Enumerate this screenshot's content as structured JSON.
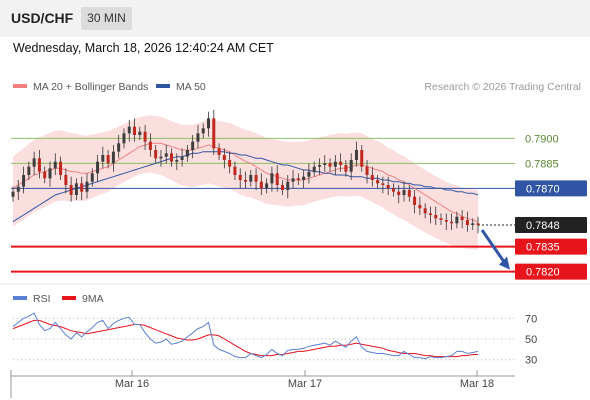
{
  "header": {
    "pair": "USD/CHF",
    "timeframe": "30 MIN",
    "timestamp": "Wednesday, March 18, 2026 12:40:24 AM CET"
  },
  "colors": {
    "bollinger": "#f07f7f",
    "ma50": "#2f55a4",
    "green_level": "#8cc063",
    "blue_level": "#2f55a4",
    "red_level": "#e8141c",
    "arrow": "#2f55a4",
    "rsi": "#5b7fd4",
    "rsi_ma": "#e8141c"
  },
  "chart_data": [
    {
      "type": "candlestick",
      "legend": [
        {
          "name": "MA 20 + Bollinger Bands",
          "color": "#f07f7f"
        },
        {
          "name": "MA 50",
          "color": "#2f55a4"
        }
      ],
      "credit": "Research © 2026 Trading Central",
      "ylim": [
        0.7812,
        0.792
      ],
      "levels": [
        {
          "value": 0.79,
          "label": "0.7900",
          "kind": "resistance",
          "color": "#8cc063",
          "style": "line"
        },
        {
          "value": 0.7885,
          "label": "0.7885",
          "kind": "resistance",
          "color": "#8cc063",
          "style": "line"
        },
        {
          "value": 0.787,
          "label": "0.7870",
          "kind": "pivot",
          "color": "#2f55a4",
          "style": "line"
        },
        {
          "value": 0.7848,
          "label": "0.7848",
          "kind": "last",
          "color": "#222222",
          "style": "dotted"
        },
        {
          "value": 0.7835,
          "label": "0.7835",
          "kind": "support",
          "color": "#e8141c",
          "style": "line"
        },
        {
          "value": 0.782,
          "label": "0.7820",
          "kind": "support",
          "color": "#e8141c",
          "style": "line"
        }
      ],
      "projection": {
        "from": 0.7845,
        "to": 0.782,
        "direction": "down"
      },
      "x_ticks": [
        "Mar 16",
        "Mar 17",
        "Mar 18"
      ],
      "close": [
        0.7868,
        0.7871,
        0.7878,
        0.7883,
        0.7888,
        0.788,
        0.7876,
        0.7882,
        0.7886,
        0.7878,
        0.7872,
        0.7866,
        0.7873,
        0.7868,
        0.7874,
        0.7879,
        0.7886,
        0.789,
        0.7885,
        0.7892,
        0.7897,
        0.7903,
        0.7907,
        0.7902,
        0.7904,
        0.7898,
        0.7893,
        0.7888,
        0.7889,
        0.7891,
        0.7886,
        0.7887,
        0.7889,
        0.7893,
        0.7898,
        0.7903,
        0.7906,
        0.7912,
        0.7894,
        0.789,
        0.7887,
        0.7883,
        0.7878,
        0.7875,
        0.7874,
        0.7878,
        0.7874,
        0.787,
        0.7873,
        0.7879,
        0.7872,
        0.7869,
        0.7874,
        0.7876,
        0.7875,
        0.7877,
        0.788,
        0.7883,
        0.7884,
        0.7885,
        0.7883,
        0.7886,
        0.7884,
        0.788,
        0.7887,
        0.7893,
        0.7883,
        0.7878,
        0.7875,
        0.7873,
        0.7872,
        0.787,
        0.7868,
        0.7866,
        0.7869,
        0.7865,
        0.786,
        0.7858,
        0.7855,
        0.7854,
        0.7852,
        0.7851,
        0.785,
        0.7849,
        0.7853,
        0.7851,
        0.7848,
        0.7849,
        0.7848
      ],
      "ma20_approx": [
        0.787,
        0.7872,
        0.7874,
        0.7876,
        0.7878,
        0.7879,
        0.788,
        0.7881,
        0.7882,
        0.7882,
        0.7881,
        0.788,
        0.788,
        0.7879,
        0.7879,
        0.788,
        0.7881,
        0.7882,
        0.7883,
        0.7885,
        0.7887,
        0.7889,
        0.7891,
        0.7893,
        0.7895,
        0.7896,
        0.7897,
        0.7897,
        0.7897,
        0.7896,
        0.7895,
        0.7894,
        0.7893,
        0.7893,
        0.7893,
        0.7894,
        0.7895,
        0.7896,
        0.7895,
        0.7894,
        0.7893,
        0.7892,
        0.789,
        0.7888,
        0.7886,
        0.7885,
        0.7883,
        0.7881,
        0.7879,
        0.7878,
        0.7877,
        0.7876,
        0.7875,
        0.7875,
        0.7875,
        0.7875,
        0.7876,
        0.7877,
        0.7878,
        0.7879,
        0.788,
        0.7881,
        0.7882,
        0.7882,
        0.7883,
        0.7884,
        0.7884,
        0.7883,
        0.7882,
        0.7881,
        0.788,
        0.7878,
        0.7877,
        0.7875,
        0.7874,
        0.7872,
        0.787,
        0.7868,
        0.7866,
        0.7864,
        0.7862,
        0.786,
        0.7858,
        0.7856,
        0.7855,
        0.7853,
        0.7852,
        0.7851,
        0.785
      ],
      "ma50_approx": [
        0.785,
        0.7852,
        0.7854,
        0.7856,
        0.7858,
        0.786,
        0.7862,
        0.7864,
        0.7866,
        0.7867,
        0.7868,
        0.7869,
        0.787,
        0.7871,
        0.7872,
        0.7873,
        0.7874,
        0.7875,
        0.7876,
        0.7877,
        0.7878,
        0.7879,
        0.788,
        0.7881,
        0.7882,
        0.7883,
        0.7884,
        0.7885,
        0.7886,
        0.7887,
        0.7888,
        0.7889,
        0.7889,
        0.789,
        0.7891,
        0.7891,
        0.7892,
        0.7892,
        0.7892,
        0.7892,
        0.7892,
        0.7891,
        0.7891,
        0.789,
        0.789,
        0.7889,
        0.7888,
        0.7888,
        0.7887,
        0.7886,
        0.7885,
        0.7884,
        0.7884,
        0.7883,
        0.7882,
        0.7881,
        0.7881,
        0.788,
        0.788,
        0.7879,
        0.7879,
        0.7878,
        0.7878,
        0.7878,
        0.7877,
        0.7877,
        0.7877,
        0.7876,
        0.7876,
        0.7876,
        0.7875,
        0.7875,
        0.7874,
        0.7874,
        0.7873,
        0.7873,
        0.7872,
        0.7872,
        0.7871,
        0.7871,
        0.787,
        0.787,
        0.7869,
        0.7869,
        0.7868,
        0.7868,
        0.7867,
        0.7867,
        0.7866
      ]
    },
    {
      "type": "line",
      "legend": [
        {
          "name": "RSI",
          "color": "#5b7fd4"
        },
        {
          "name": "9MA",
          "color": "#e8141c"
        }
      ],
      "ylim": [
        22,
        78
      ],
      "y_ticks": [
        "70",
        "50",
        "30"
      ],
      "rsi": [
        62,
        66,
        70,
        72,
        75,
        64,
        58,
        60,
        66,
        60,
        54,
        50,
        56,
        52,
        57,
        61,
        66,
        68,
        60,
        65,
        68,
        70,
        71,
        64,
        64,
        56,
        50,
        46,
        47,
        50,
        45,
        46,
        48,
        52,
        56,
        60,
        62,
        66,
        44,
        40,
        38,
        36,
        33,
        32,
        32,
        36,
        34,
        32,
        35,
        40,
        36,
        34,
        39,
        40,
        40,
        41,
        43,
        44,
        45,
        46,
        44,
        48,
        45,
        42,
        48,
        52,
        42,
        38,
        37,
        36,
        36,
        35,
        34,
        34,
        38,
        35,
        32,
        32,
        31,
        33,
        32,
        32,
        33,
        34,
        38,
        38,
        36,
        37,
        38
      ],
      "rsi_ma": [
        60,
        62,
        64,
        66,
        68,
        68,
        66,
        64,
        63,
        62,
        60,
        58,
        57,
        56,
        55,
        56,
        57,
        58,
        59,
        60,
        61,
        62,
        63,
        64,
        64,
        63,
        61,
        59,
        57,
        55,
        53,
        51,
        50,
        49,
        49,
        50,
        52,
        54,
        54,
        53,
        50,
        47,
        44,
        41,
        38,
        36,
        35,
        34,
        34,
        34,
        35,
        35,
        36,
        37,
        38,
        38,
        39,
        40,
        41,
        42,
        43,
        43,
        44,
        44,
        45,
        46,
        45,
        44,
        43,
        42,
        41,
        39,
        38,
        37,
        36,
        36,
        36,
        35,
        34,
        34,
        33,
        33,
        33,
        33,
        33,
        34,
        34,
        35,
        35
      ]
    }
  ]
}
